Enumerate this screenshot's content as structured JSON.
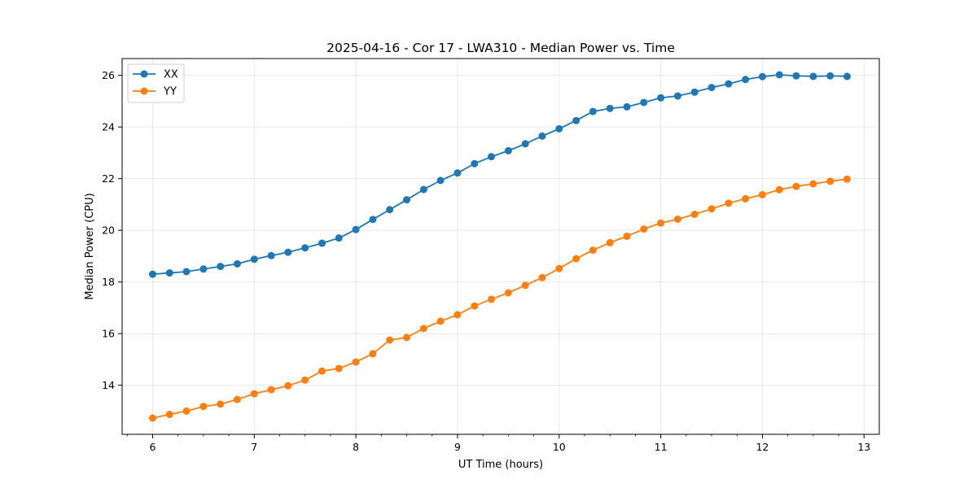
{
  "chart_data": {
    "type": "line",
    "title": "2025-04-16 - Cor 17 - LWA310 - Median Power vs. Time",
    "xlabel": "UT Time (hours)",
    "ylabel": "Median Power (CPU)",
    "xlim": [
      5.7,
      13.15
    ],
    "ylim": [
      12.1,
      26.65
    ],
    "xticks": [
      6,
      7,
      8,
      9,
      10,
      11,
      12,
      13
    ],
    "yticks": [
      14,
      16,
      18,
      20,
      22,
      24,
      26
    ],
    "grid": true,
    "legend_position": "top-left",
    "x": [
      6.0,
      6.167,
      6.333,
      6.5,
      6.667,
      6.833,
      7.0,
      7.167,
      7.333,
      7.5,
      7.667,
      7.833,
      8.0,
      8.167,
      8.333,
      8.5,
      8.667,
      8.833,
      9.0,
      9.167,
      9.333,
      9.5,
      9.667,
      9.833,
      10.0,
      10.167,
      10.333,
      10.5,
      10.667,
      10.833,
      11.0,
      11.167,
      11.333,
      11.5,
      11.667,
      11.833,
      12.0,
      12.167,
      12.333,
      12.5,
      12.667,
      12.833
    ],
    "series": [
      {
        "name": "XX",
        "color": "#1f77b4",
        "values": [
          18.3,
          18.35,
          18.4,
          18.5,
          18.6,
          18.7,
          18.88,
          19.02,
          19.15,
          19.32,
          19.5,
          19.7,
          20.03,
          20.42,
          20.8,
          21.18,
          21.58,
          21.93,
          22.22,
          22.58,
          22.85,
          23.08,
          23.35,
          23.65,
          23.93,
          24.25,
          24.6,
          24.72,
          24.78,
          24.95,
          25.13,
          25.2,
          25.35,
          25.53,
          25.67,
          25.84,
          25.95,
          26.02,
          25.98,
          25.96,
          25.98,
          25.96
        ]
      },
      {
        "name": "YY",
        "color": "#ff7f0e",
        "values": [
          12.73,
          12.87,
          13.0,
          13.18,
          13.27,
          13.45,
          13.67,
          13.83,
          13.98,
          14.2,
          14.55,
          14.65,
          14.9,
          15.22,
          15.75,
          15.85,
          16.2,
          16.48,
          16.73,
          17.07,
          17.33,
          17.58,
          17.87,
          18.17,
          18.52,
          18.9,
          19.23,
          19.52,
          19.77,
          20.05,
          20.28,
          20.43,
          20.62,
          20.83,
          21.05,
          21.22,
          21.38,
          21.57,
          21.7,
          21.8,
          21.9,
          21.98
        ]
      }
    ]
  }
}
